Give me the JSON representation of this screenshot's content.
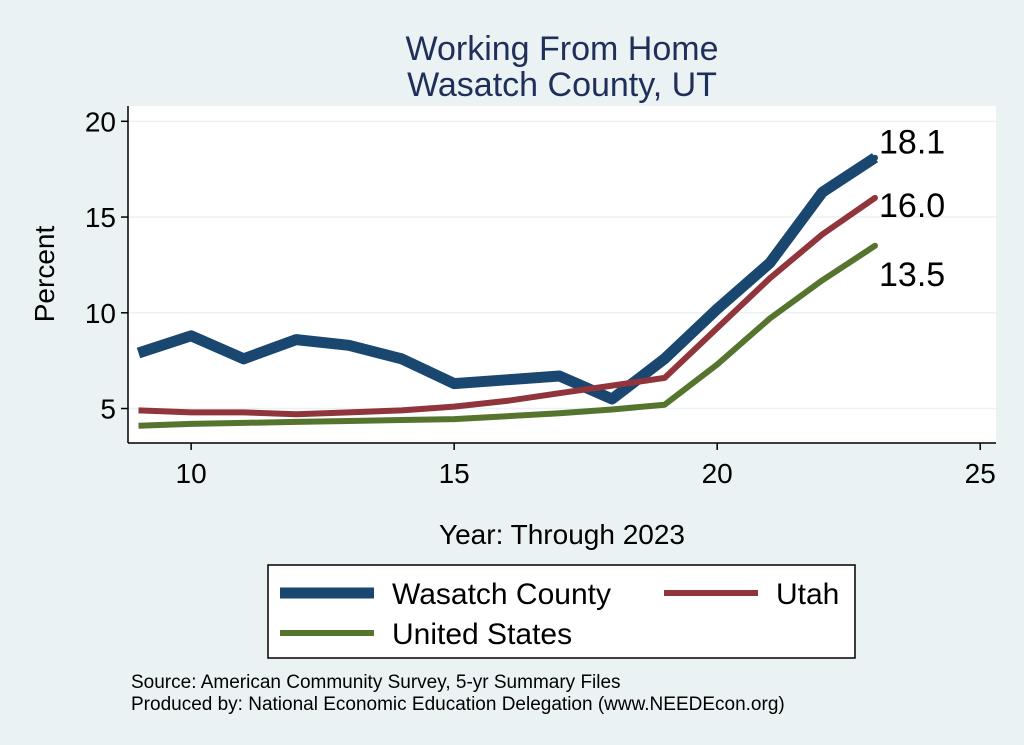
{
  "chart_data": {
    "type": "line",
    "title": "Working From Home",
    "subtitle": "Wasatch County, UT",
    "xlabel": "Year: Through 2023",
    "ylabel": "Percent",
    "xlim": [
      8.8,
      25.3
    ],
    "ylim": [
      3.2,
      20.8
    ],
    "xticks": [
      10,
      15,
      20,
      25
    ],
    "yticks": [
      5,
      10,
      15,
      20
    ],
    "grid": true,
    "legend_position": "bottom",
    "x": [
      9,
      10,
      11,
      12,
      13,
      14,
      15,
      16,
      17,
      18,
      19,
      20,
      21,
      22,
      23
    ],
    "series": [
      {
        "name": "Wasatch County",
        "color": "#1a476f",
        "values": [
          7.9,
          8.8,
          7.6,
          8.6,
          8.3,
          7.6,
          6.3,
          6.5,
          6.7,
          5.5,
          7.6,
          10.2,
          12.6,
          16.3,
          18.1
        ],
        "end_label": "18.1"
      },
      {
        "name": "Utah",
        "color": "#90353b",
        "values": [
          4.9,
          4.8,
          4.8,
          4.7,
          4.8,
          4.9,
          5.1,
          5.4,
          5.8,
          6.2,
          6.6,
          9.2,
          11.8,
          14.1,
          16.0
        ],
        "end_label": "16.0"
      },
      {
        "name": "United States",
        "color": "#55752f",
        "values": [
          4.1,
          4.2,
          4.25,
          4.3,
          4.35,
          4.4,
          4.45,
          4.6,
          4.75,
          4.95,
          5.2,
          7.3,
          9.7,
          11.7,
          13.5
        ],
        "end_label": "13.5"
      }
    ]
  },
  "source": {
    "line1": "Source: American Community Survey, 5-yr Summary Files",
    "line2": "Produced by: National Economic Education Delegation (www.NEEDEcon.org)"
  }
}
